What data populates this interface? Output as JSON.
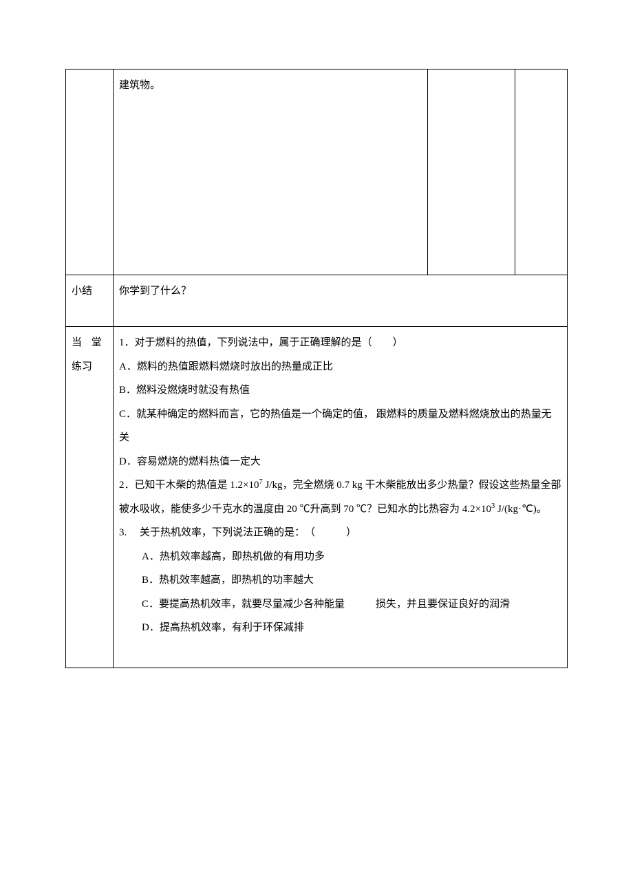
{
  "row_top": {
    "label": "",
    "content": "建筑物。",
    "aux1": "",
    "aux2": ""
  },
  "row_summary": {
    "label": "小结",
    "content": "你学到了什么？"
  },
  "row_practice": {
    "label_line1": "当 堂",
    "label_line2": "练习",
    "q1_stem": "1．对于燃料的热值，下列说法中，属于正确理解的是（　　）",
    "q1_a": "A．燃料的热值跟燃料燃烧时放出的热量成正比",
    "q1_b": "B．燃料没燃烧时就没有热值",
    "q1_c": "C．就某种确定的燃料而言，它的热值是一个确定的值， 跟燃料的质量及燃料燃烧放出的热量无关",
    "q1_d": "D．容易燃烧的燃料热值一定大",
    "q2_part1": "2．已知干木柴的热值是 1.2×10",
    "q2_exp1": "7",
    "q2_part2": " J/kg，完全燃烧 0.7 kg 干木柴能放出多少热量？假设这些热量全部被水吸收，能使多少千克水的温度由 20 ℃升高到 70 ℃？已知水的比热容为 4.2×10",
    "q2_exp2": "3",
    "q2_part3": " J/(kg·℃)。",
    "q3_stem": "3.　 关于热机效率，下列说法正确的是：　（　　　）",
    "q3_a": "A．热机效率越高，即热机做的有用功多",
    "q3_b": "B．热机效率越高，即热机的功率越大",
    "q3_c": "C．要提高热机效率，就要尽量减少各种能量　　　损失，并且要保证良好的润滑",
    "q3_d": "D．提高热机效率，有利于环保减排"
  }
}
